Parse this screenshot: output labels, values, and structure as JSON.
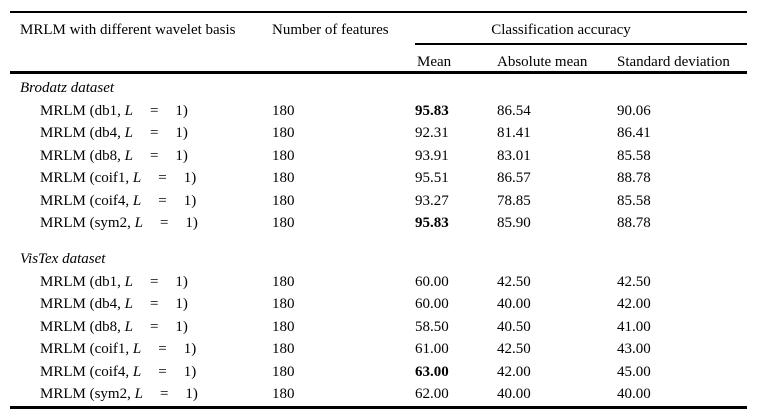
{
  "table": {
    "header": {
      "col1": "MRLM with different wavelet basis",
      "col2": "Number of features",
      "span": "Classification accuracy",
      "sub": [
        "Mean",
        "Absolute mean",
        "Standard deviation"
      ]
    },
    "sections": [
      {
        "title": "Brodatz dataset",
        "rows": [
          {
            "label_pre": "MRLM (db1, ",
            "label_var": "L",
            "label_eq": "=",
            "label_end": "1)",
            "features": "180",
            "mean": "95.83",
            "mean_bold": true,
            "absolute_mean": "86.54",
            "standard_deviation": "90.06"
          },
          {
            "label_pre": "MRLM (db4, ",
            "label_var": "L",
            "label_eq": "=",
            "label_end": "1)",
            "features": "180",
            "mean": "92.31",
            "mean_bold": false,
            "absolute_mean": "81.41",
            "standard_deviation": "86.41"
          },
          {
            "label_pre": "MRLM (db8, ",
            "label_var": "L",
            "label_eq": "=",
            "label_end": "1)",
            "features": "180",
            "mean": "93.91",
            "mean_bold": false,
            "absolute_mean": "83.01",
            "standard_deviation": "85.58"
          },
          {
            "label_pre": "MRLM (coif1, ",
            "label_var": "L",
            "label_eq": "=",
            "label_end": "1)",
            "features": "180",
            "mean": "95.51",
            "mean_bold": false,
            "absolute_mean": "86.57",
            "standard_deviation": "88.78"
          },
          {
            "label_pre": "MRLM (coif4, ",
            "label_var": "L",
            "label_eq": "=",
            "label_end": "1)",
            "features": "180",
            "mean": "93.27",
            "mean_bold": false,
            "absolute_mean": "78.85",
            "standard_deviation": "85.58"
          },
          {
            "label_pre": "MRLM (sym2, ",
            "label_var": "L",
            "label_eq": "=",
            "label_end": "1)",
            "features": "180",
            "mean": "95.83",
            "mean_bold": true,
            "absolute_mean": "85.90",
            "standard_deviation": "88.78"
          }
        ]
      },
      {
        "title": "VisTex dataset",
        "rows": [
          {
            "label_pre": "MRLM (db1, ",
            "label_var": "L",
            "label_eq": "=",
            "label_end": "1)",
            "features": "180",
            "mean": "60.00",
            "mean_bold": false,
            "absolute_mean": "42.50",
            "standard_deviation": "42.50"
          },
          {
            "label_pre": "MRLM (db4, ",
            "label_var": "L",
            "label_eq": "=",
            "label_end": "1)",
            "features": "180",
            "mean": "60.00",
            "mean_bold": false,
            "absolute_mean": "40.00",
            "standard_deviation": "42.00"
          },
          {
            "label_pre": "MRLM (db8, ",
            "label_var": "L",
            "label_eq": "=",
            "label_end": "1)",
            "features": "180",
            "mean": "58.50",
            "mean_bold": false,
            "absolute_mean": "40.50",
            "standard_deviation": "41.00"
          },
          {
            "label_pre": "MRLM (coif1, ",
            "label_var": "L",
            "label_eq": "=",
            "label_end": "1)",
            "features": "180",
            "mean": "61.00",
            "mean_bold": false,
            "absolute_mean": "42.50",
            "standard_deviation": "43.00"
          },
          {
            "label_pre": "MRLM (coif4, ",
            "label_var": "L",
            "label_eq": "=",
            "label_end": "1)",
            "features": "180",
            "mean": "63.00",
            "mean_bold": true,
            "absolute_mean": "42.00",
            "standard_deviation": "45.00"
          },
          {
            "label_pre": "MRLM (sym2, ",
            "label_var": "L",
            "label_eq": "=",
            "label_end": "1)",
            "features": "180",
            "mean": "62.00",
            "mean_bold": false,
            "absolute_mean": "40.00",
            "standard_deviation": "40.00"
          }
        ]
      }
    ]
  }
}
